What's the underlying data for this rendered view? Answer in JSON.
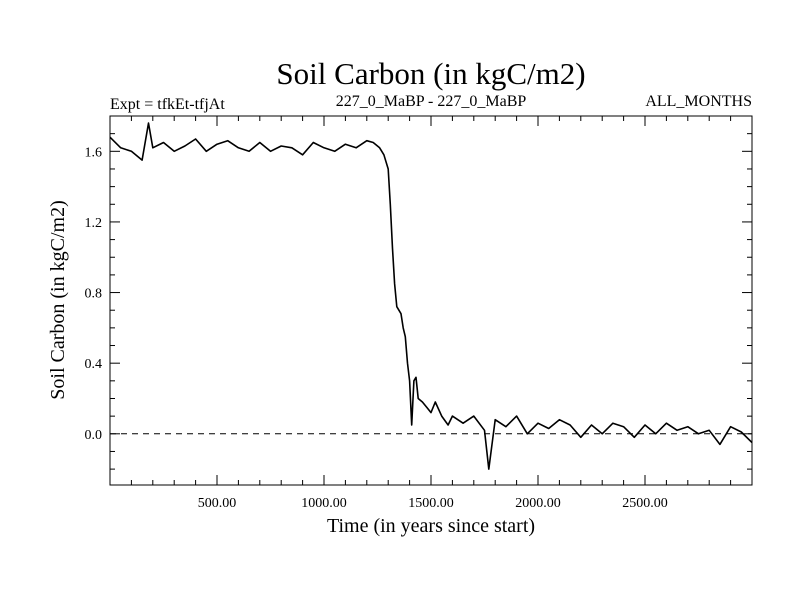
{
  "chart_data": {
    "type": "line",
    "title": "Soil Carbon (in kgC/m2)",
    "subtitle_left": "Expt = tfkEt-tfjAt",
    "subtitle_center": "227_0_MaBP - 227_0_MaBP",
    "subtitle_right": "ALL_MONTHS",
    "xlabel": "Time (in years since start)",
    "ylabel": "Soil Carbon (in kgC/m2)",
    "xlim": [
      0,
      3000
    ],
    "ylim": [
      -0.29,
      1.8
    ],
    "xticks": [
      500,
      1000,
      1500,
      2000,
      2500
    ],
    "xtick_labels": [
      "500.00",
      "1000.00",
      "1500.00",
      "2000.00",
      "2500.00"
    ],
    "yticks": [
      0.0,
      0.4,
      0.8,
      1.2,
      1.6
    ],
    "ytick_labels": [
      "0.0",
      "0.4",
      "0.8",
      "1.2",
      "1.6"
    ],
    "reference_line": {
      "y": 0.0,
      "style": "dashed"
    },
    "grid": false,
    "series": [
      {
        "x": [
          0,
          50,
          100,
          150,
          180,
          200,
          250,
          300,
          350,
          400,
          450,
          500,
          550,
          600,
          650,
          700,
          750,
          800,
          850,
          900,
          950,
          1000,
          1050,
          1100,
          1150,
          1200,
          1230,
          1260,
          1280,
          1300,
          1310,
          1320,
          1330,
          1340,
          1350,
          1360,
          1370,
          1380,
          1390,
          1400,
          1410,
          1420,
          1430,
          1440,
          1460,
          1480,
          1500,
          1520,
          1550,
          1580,
          1600,
          1650,
          1700,
          1750,
          1770,
          1800,
          1850,
          1900,
          1950,
          2000,
          2050,
          2100,
          2150,
          2200,
          2250,
          2300,
          2350,
          2400,
          2450,
          2500,
          2550,
          2600,
          2650,
          2700,
          2750,
          2800,
          2850,
          2900,
          2950,
          3000
        ],
        "y": [
          1.68,
          1.62,
          1.6,
          1.55,
          1.76,
          1.62,
          1.65,
          1.6,
          1.63,
          1.67,
          1.6,
          1.64,
          1.66,
          1.62,
          1.6,
          1.65,
          1.6,
          1.63,
          1.62,
          1.58,
          1.65,
          1.62,
          1.6,
          1.64,
          1.62,
          1.66,
          1.65,
          1.62,
          1.58,
          1.5,
          1.3,
          1.05,
          0.85,
          0.72,
          0.7,
          0.68,
          0.6,
          0.55,
          0.4,
          0.3,
          0.05,
          0.3,
          0.32,
          0.2,
          0.18,
          0.15,
          0.12,
          0.18,
          0.1,
          0.05,
          0.1,
          0.06,
          0.1,
          0.02,
          -0.2,
          0.08,
          0.04,
          0.1,
          0.0,
          0.06,
          0.03,
          0.08,
          0.05,
          -0.02,
          0.05,
          0.0,
          0.06,
          0.04,
          -0.02,
          0.05,
          0.0,
          0.06,
          0.02,
          0.04,
          0.0,
          0.02,
          -0.06,
          0.04,
          0.01,
          -0.05
        ]
      }
    ]
  }
}
